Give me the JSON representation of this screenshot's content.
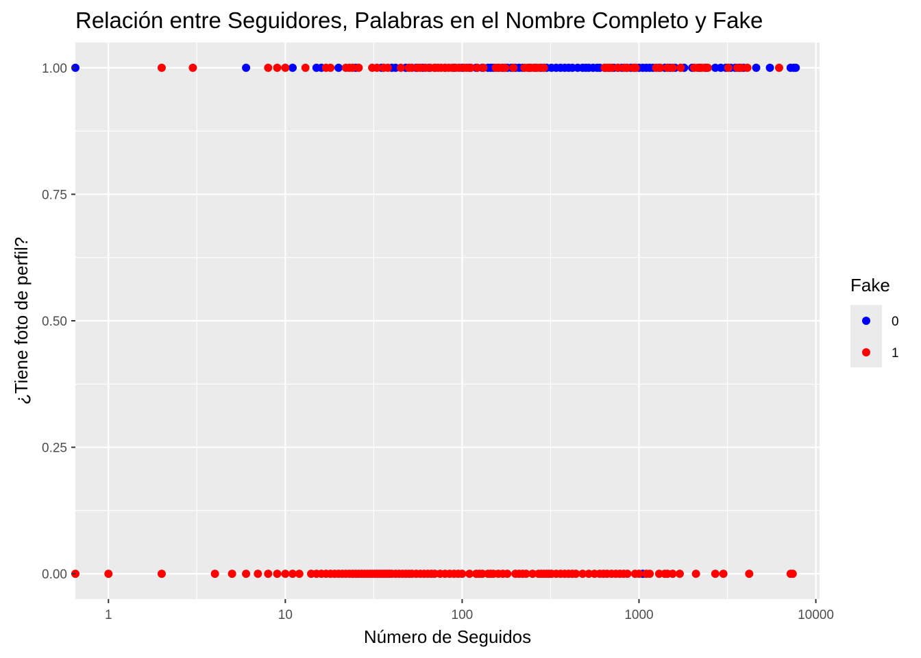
{
  "chart_data": {
    "type": "scatter",
    "title": "Relación entre Seguidores, Palabras en el Nombre Completo y Fake",
    "xlabel": "Número de Seguidos",
    "ylabel": "¿Tiene foto de perfil?",
    "x_scale": "log10",
    "xlim": [
      0.65,
      10500
    ],
    "ylim": [
      -0.05,
      1.05
    ],
    "x_ticks": [
      {
        "value": 1,
        "label": "1"
      },
      {
        "value": 10,
        "label": "10"
      },
      {
        "value": 100,
        "label": "100"
      },
      {
        "value": 1000,
        "label": "1000"
      },
      {
        "value": 10000,
        "label": "10000"
      }
    ],
    "y_ticks": [
      {
        "value": 0,
        "label": "0.00"
      },
      {
        "value": 0.25,
        "label": "0.25"
      },
      {
        "value": 0.5,
        "label": "0.50"
      },
      {
        "value": 0.75,
        "label": "0.75"
      },
      {
        "value": 1,
        "label": "1.00"
      }
    ],
    "grid": true,
    "background": "#ebebeb",
    "legend": {
      "title": "Fake",
      "position": "right",
      "entries": [
        {
          "label": "0",
          "color": "#0000ff"
        },
        {
          "label": "1",
          "color": "#ff0000"
        }
      ]
    },
    "series": [
      {
        "name": "0",
        "color": "#0000ff",
        "points": [
          [
            0.65,
            1
          ],
          [
            6,
            1
          ],
          [
            11,
            1
          ],
          [
            15,
            1
          ],
          [
            16,
            1
          ],
          [
            20,
            1
          ],
          [
            25,
            1
          ],
          [
            35,
            1
          ],
          [
            40,
            1
          ],
          [
            42,
            1
          ],
          [
            48,
            1
          ],
          [
            55,
            1
          ],
          [
            60,
            1
          ],
          [
            65,
            1
          ],
          [
            70,
            1
          ],
          [
            80,
            1
          ],
          [
            90,
            1
          ],
          [
            100,
            1
          ],
          [
            110,
            1
          ],
          [
            120,
            1
          ],
          [
            130,
            1
          ],
          [
            140,
            1
          ],
          [
            145,
            1
          ],
          [
            150,
            1
          ],
          [
            160,
            1
          ],
          [
            170,
            1
          ],
          [
            180,
            1
          ],
          [
            190,
            1
          ],
          [
            200,
            1
          ],
          [
            210,
            1
          ],
          [
            220,
            1
          ],
          [
            240,
            1
          ],
          [
            260,
            1
          ],
          [
            280,
            1
          ],
          [
            300,
            1
          ],
          [
            320,
            1
          ],
          [
            340,
            1
          ],
          [
            360,
            1
          ],
          [
            380,
            1
          ],
          [
            400,
            1
          ],
          [
            420,
            1
          ],
          [
            450,
            1
          ],
          [
            480,
            1
          ],
          [
            500,
            1
          ],
          [
            520,
            1
          ],
          [
            550,
            1
          ],
          [
            580,
            1
          ],
          [
            600,
            1
          ],
          [
            640,
            1
          ],
          [
            680,
            1
          ],
          [
            720,
            1
          ],
          [
            760,
            1
          ],
          [
            800,
            1
          ],
          [
            850,
            1
          ],
          [
            900,
            1
          ],
          [
            950,
            1
          ],
          [
            1000,
            1
          ],
          [
            1050,
            1
          ],
          [
            1100,
            1
          ],
          [
            1150,
            1
          ],
          [
            1200,
            1
          ],
          [
            1300,
            1
          ],
          [
            1400,
            1
          ],
          [
            1500,
            1
          ],
          [
            1600,
            1
          ],
          [
            1800,
            1
          ],
          [
            2000,
            1
          ],
          [
            2200,
            1
          ],
          [
            2400,
            1
          ],
          [
            2700,
            1
          ],
          [
            2900,
            1
          ],
          [
            3100,
            1
          ],
          [
            3300,
            1
          ],
          [
            3500,
            1
          ],
          [
            3700,
            1
          ],
          [
            3900,
            1
          ],
          [
            4600,
            1
          ],
          [
            5500,
            1
          ],
          [
            7200,
            1
          ],
          [
            7500,
            1
          ],
          [
            7700,
            1
          ],
          [
            1050,
            0
          ]
        ]
      },
      {
        "name": "1",
        "color": "#ff0000",
        "points": [
          [
            2,
            1
          ],
          [
            3,
            1
          ],
          [
            8,
            1
          ],
          [
            9,
            1
          ],
          [
            10,
            1
          ],
          [
            13,
            1
          ],
          [
            17,
            1
          ],
          [
            18,
            1
          ],
          [
            22,
            1
          ],
          [
            23,
            1
          ],
          [
            24,
            1
          ],
          [
            26,
            1
          ],
          [
            31,
            1
          ],
          [
            33,
            1
          ],
          [
            36,
            1
          ],
          [
            38,
            1
          ],
          [
            45,
            1
          ],
          [
            50,
            1
          ],
          [
            52,
            1
          ],
          [
            56,
            1
          ],
          [
            58,
            1
          ],
          [
            62,
            1
          ],
          [
            66,
            1
          ],
          [
            70,
            1
          ],
          [
            73,
            1
          ],
          [
            76,
            1
          ],
          [
            80,
            1
          ],
          [
            84,
            1
          ],
          [
            88,
            1
          ],
          [
            92,
            1
          ],
          [
            96,
            1
          ],
          [
            102,
            1
          ],
          [
            106,
            1
          ],
          [
            112,
            1
          ],
          [
            122,
            1
          ],
          [
            132,
            1
          ],
          [
            155,
            1
          ],
          [
            162,
            1
          ],
          [
            168,
            1
          ],
          [
            175,
            1
          ],
          [
            195,
            1
          ],
          [
            225,
            1
          ],
          [
            235,
            1
          ],
          [
            245,
            1
          ],
          [
            255,
            1
          ],
          [
            265,
            1
          ],
          [
            275,
            1
          ],
          [
            290,
            1
          ],
          [
            640,
            1
          ],
          [
            660,
            1
          ],
          [
            680,
            1
          ],
          [
            700,
            1
          ],
          [
            760,
            1
          ],
          [
            820,
            1
          ],
          [
            860,
            1
          ],
          [
            930,
            1
          ],
          [
            960,
            1
          ],
          [
            1250,
            1
          ],
          [
            1320,
            1
          ],
          [
            1450,
            1
          ],
          [
            1550,
            1
          ],
          [
            1720,
            1
          ],
          [
            2050,
            1
          ],
          [
            2150,
            1
          ],
          [
            2250,
            1
          ],
          [
            2350,
            1
          ],
          [
            2450,
            1
          ],
          [
            3200,
            1
          ],
          [
            3600,
            1
          ],
          [
            3800,
            1
          ],
          [
            4100,
            1
          ],
          [
            6200,
            1
          ],
          [
            0.65,
            0
          ],
          [
            1,
            0
          ],
          [
            2,
            0
          ],
          [
            4,
            0
          ],
          [
            5,
            0
          ],
          [
            6,
            0
          ],
          [
            7,
            0
          ],
          [
            8,
            0
          ],
          [
            9,
            0
          ],
          [
            10,
            0
          ],
          [
            11,
            0
          ],
          [
            12,
            0
          ],
          [
            14,
            0
          ],
          [
            15,
            0
          ],
          [
            16,
            0
          ],
          [
            17,
            0
          ],
          [
            18,
            0
          ],
          [
            19,
            0
          ],
          [
            20,
            0
          ],
          [
            21,
            0
          ],
          [
            22,
            0
          ],
          [
            23,
            0
          ],
          [
            24,
            0
          ],
          [
            25,
            0
          ],
          [
            26,
            0
          ],
          [
            27,
            0
          ],
          [
            28,
            0
          ],
          [
            29,
            0
          ],
          [
            30,
            0
          ],
          [
            31,
            0
          ],
          [
            32,
            0
          ],
          [
            33,
            0
          ],
          [
            34,
            0
          ],
          [
            35,
            0
          ],
          [
            36,
            0
          ],
          [
            37,
            0
          ],
          [
            38,
            0
          ],
          [
            39,
            0
          ],
          [
            40,
            0
          ],
          [
            42,
            0
          ],
          [
            44,
            0
          ],
          [
            46,
            0
          ],
          [
            48,
            0
          ],
          [
            50,
            0
          ],
          [
            52,
            0
          ],
          [
            55,
            0
          ],
          [
            58,
            0
          ],
          [
            61,
            0
          ],
          [
            64,
            0
          ],
          [
            67,
            0
          ],
          [
            70,
            0
          ],
          [
            75,
            0
          ],
          [
            80,
            0
          ],
          [
            85,
            0
          ],
          [
            90,
            0
          ],
          [
            95,
            0
          ],
          [
            100,
            0
          ],
          [
            110,
            0
          ],
          [
            120,
            0
          ],
          [
            125,
            0
          ],
          [
            130,
            0
          ],
          [
            140,
            0
          ],
          [
            145,
            0
          ],
          [
            150,
            0
          ],
          [
            160,
            0
          ],
          [
            170,
            0
          ],
          [
            180,
            0
          ],
          [
            200,
            0
          ],
          [
            210,
            0
          ],
          [
            220,
            0
          ],
          [
            230,
            0
          ],
          [
            250,
            0
          ],
          [
            270,
            0
          ],
          [
            280,
            0
          ],
          [
            290,
            0
          ],
          [
            300,
            0
          ],
          [
            310,
            0
          ],
          [
            320,
            0
          ],
          [
            340,
            0
          ],
          [
            360,
            0
          ],
          [
            380,
            0
          ],
          [
            400,
            0
          ],
          [
            420,
            0
          ],
          [
            440,
            0
          ],
          [
            480,
            0
          ],
          [
            520,
            0
          ],
          [
            560,
            0
          ],
          [
            600,
            0
          ],
          [
            630,
            0
          ],
          [
            660,
            0
          ],
          [
            700,
            0
          ],
          [
            740,
            0
          ],
          [
            780,
            0
          ],
          [
            820,
            0
          ],
          [
            860,
            0
          ],
          [
            950,
            0
          ],
          [
            1000,
            0
          ],
          [
            1100,
            0
          ],
          [
            1150,
            0
          ],
          [
            1300,
            0
          ],
          [
            1400,
            0
          ],
          [
            1450,
            0
          ],
          [
            1550,
            0
          ],
          [
            1700,
            0
          ],
          [
            2100,
            0
          ],
          [
            2700,
            0
          ],
          [
            3000,
            0
          ],
          [
            4200,
            0
          ],
          [
            7200,
            0
          ],
          [
            7400,
            0
          ]
        ]
      }
    ]
  }
}
